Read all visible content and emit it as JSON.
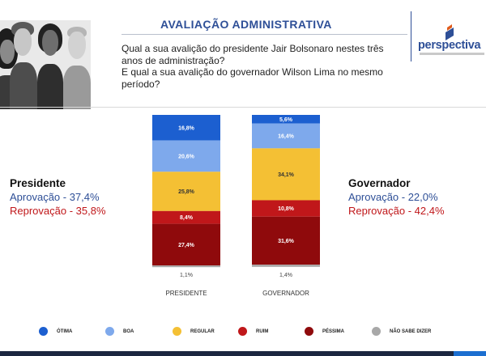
{
  "header": {
    "title": "AVALIAÇÃO ADMINISTRATIVA",
    "question_lines": [
      "Qual a sua avalição do presidente Jair Bolsonaro nestes três",
      "anos de administração?",
      "E qual a sua avalição do governador Wilson Lima no mesmo",
      "período?"
    ]
  },
  "logo": {
    "text": "perspectiva"
  },
  "left_summary": {
    "heading": "Presidente",
    "approval": "Aprovação - 37,4%",
    "disapproval": "Reprovação - 35,8%"
  },
  "right_summary": {
    "heading": "Governador",
    "approval": "Aprovação - 22,0%",
    "disapproval": "Reprovação - 42,4%"
  },
  "colors": {
    "otima": "#1c5fd0",
    "boa": "#7ea9ec",
    "regular": "#f4c034",
    "ruim": "#c0171a",
    "pessima": "#8f0a0c",
    "nao_sabe": "#a8a8a8",
    "brand": "#2e4f97"
  },
  "chart_data": {
    "type": "bar",
    "stacked": true,
    "categories": [
      "PRESIDENTE",
      "GOVERNADOR"
    ],
    "series": [
      {
        "name": "ÓTIMA",
        "key": "otima",
        "values": [
          16.8,
          5.6
        ],
        "labels": [
          "16,8%",
          "5,6%"
        ]
      },
      {
        "name": "BOA",
        "key": "boa",
        "values": [
          20.6,
          16.4
        ],
        "labels": [
          "20,6%",
          "16,4%"
        ]
      },
      {
        "name": "REGULAR",
        "key": "regular",
        "values": [
          25.8,
          34.1
        ],
        "labels": [
          "25,8%",
          "34,1%"
        ]
      },
      {
        "name": "RUIM",
        "key": "ruim",
        "values": [
          8.4,
          10.8
        ],
        "labels": [
          "8,4%",
          "10,8%"
        ]
      },
      {
        "name": "PÉSSIMA",
        "key": "pessima",
        "values": [
          27.4,
          31.6
        ],
        "labels": [
          "27,4%",
          "31,6%"
        ]
      },
      {
        "name": "NÃO SABE DIZER",
        "key": "nao_sabe",
        "values": [
          1.1,
          1.4
        ],
        "labels": [
          "1,1%",
          "1,4%"
        ]
      }
    ],
    "title": "",
    "xlabel": "",
    "ylabel": "",
    "grid": false,
    "legend_position": "bottom"
  }
}
